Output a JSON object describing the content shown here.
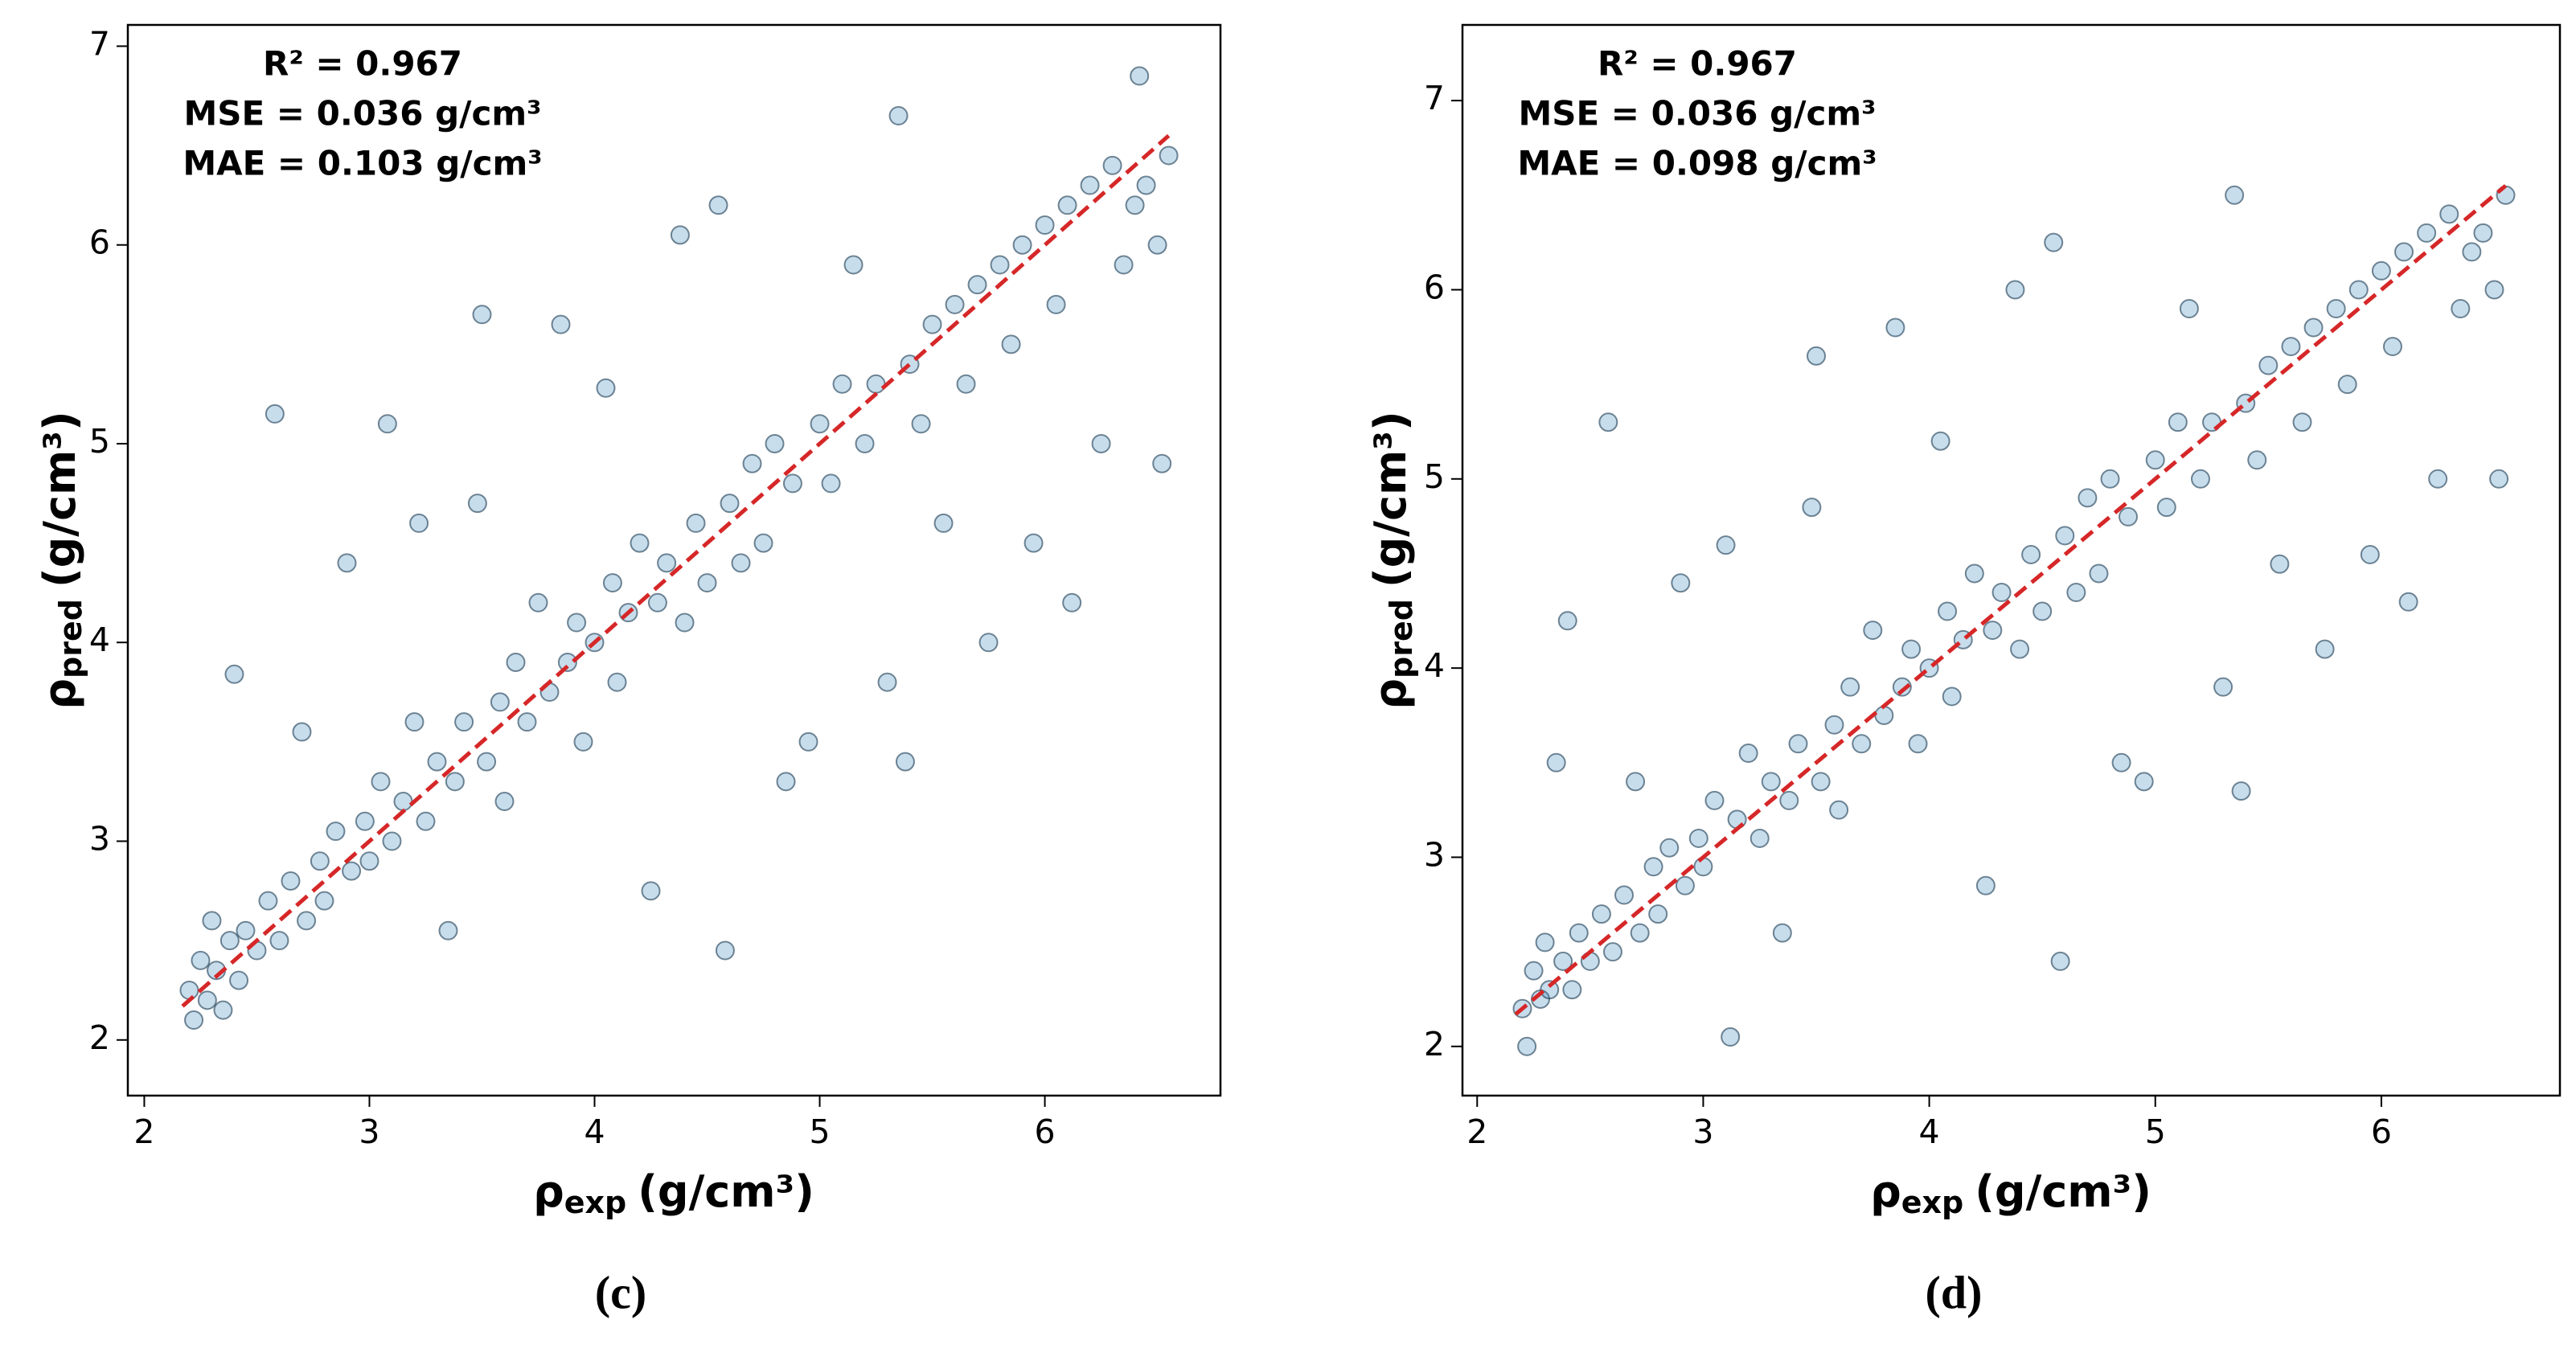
{
  "chart_data": [
    {
      "type": "scatter",
      "panel_label": "(c)",
      "x_label": {
        "symbol": "ρ",
        "subscript": "exp",
        "unit": "(g/cm³)"
      },
      "y_label": {
        "symbol": "ρ",
        "subscript": "pred",
        "unit": "(g/cm³)"
      },
      "annotations": [
        "R² = 0.967",
        "MSE = 0.036 g/cm³",
        "MAE = 0.103 g/cm³"
      ],
      "xlim": [
        1.927,
        6.78
      ],
      "ylim": [
        1.72,
        7.107
      ],
      "xticks": [
        2,
        3,
        4,
        5,
        6
      ],
      "yticks": [
        2,
        3,
        4,
        5,
        6,
        7
      ],
      "color": "#1f77b4",
      "reference_line": {
        "x": [
          2.17,
          6.55
        ],
        "y": [
          2.17,
          6.55
        ],
        "color": "#d62728",
        "style": "dashed"
      },
      "x": [
        2.2,
        2.22,
        2.25,
        2.28,
        2.3,
        2.32,
        2.35,
        2.38,
        2.4,
        2.42,
        2.45,
        2.5,
        2.55,
        2.58,
        2.6,
        2.65,
        2.7,
        2.72,
        2.78,
        2.8,
        2.85,
        2.9,
        2.92,
        2.98,
        3.0,
        3.05,
        3.08,
        3.1,
        3.15,
        3.2,
        3.22,
        3.25,
        3.3,
        3.35,
        3.38,
        3.42,
        3.48,
        3.5,
        3.52,
        3.58,
        3.6,
        3.65,
        3.7,
        3.75,
        3.8,
        3.85,
        3.88,
        3.92,
        3.95,
        4.0,
        4.05,
        4.08,
        4.1,
        4.15,
        4.2,
        4.25,
        4.28,
        4.32,
        4.38,
        4.4,
        4.45,
        4.5,
        4.55,
        4.58,
        4.6,
        4.65,
        4.7,
        4.75,
        4.8,
        4.85,
        4.88,
        4.95,
        5.0,
        5.05,
        5.1,
        5.15,
        5.2,
        5.25,
        5.3,
        5.35,
        5.38,
        5.4,
        5.45,
        5.5,
        5.55,
        5.6,
        5.65,
        5.7,
        5.75,
        5.8,
        5.85,
        5.9,
        5.95,
        6.0,
        6.05,
        6.1,
        6.12,
        6.2,
        6.25,
        6.3,
        6.35,
        6.4,
        6.42,
        6.45,
        6.5,
        6.52,
        6.55
      ],
      "y": [
        2.25,
        2.1,
        2.4,
        2.2,
        2.6,
        2.35,
        2.15,
        2.5,
        3.84,
        2.3,
        2.55,
        2.45,
        2.7,
        5.15,
        2.5,
        2.8,
        3.55,
        2.6,
        2.9,
        2.7,
        3.05,
        4.4,
        2.85,
        3.1,
        2.9,
        3.3,
        5.1,
        3.0,
        3.2,
        3.6,
        4.6,
        3.1,
        3.4,
        2.55,
        3.3,
        3.6,
        4.7,
        5.65,
        3.4,
        3.7,
        3.2,
        3.9,
        3.6,
        4.2,
        3.75,
        5.6,
        3.9,
        4.1,
        3.5,
        4.0,
        5.28,
        4.3,
        3.8,
        4.15,
        4.5,
        2.75,
        4.2,
        4.4,
        6.05,
        4.1,
        4.6,
        4.3,
        6.2,
        2.45,
        4.7,
        4.4,
        4.9,
        4.5,
        5.0,
        3.3,
        4.8,
        3.5,
        5.1,
        4.8,
        5.3,
        5.9,
        5.0,
        5.3,
        3.8,
        6.65,
        3.4,
        5.4,
        5.1,
        5.6,
        4.6,
        5.7,
        5.3,
        5.8,
        4.0,
        5.9,
        5.5,
        6.0,
        4.5,
        6.1,
        5.7,
        6.2,
        4.2,
        6.3,
        5.0,
        6.4,
        5.9,
        6.2,
        6.85,
        6.3,
        6.0,
        4.9,
        6.45
      ]
    },
    {
      "type": "scatter",
      "panel_label": "(d)",
      "x_label": {
        "symbol": "ρ",
        "subscript": "exp",
        "unit": "(g/cm³)"
      },
      "y_label": {
        "symbol": "ρ",
        "subscript": "pred",
        "unit": "(g/cm³)"
      },
      "annotations": [
        "R² = 0.967",
        "MSE = 0.036 g/cm³",
        "MAE = 0.098 g/cm³"
      ],
      "xlim": [
        1.935,
        6.79
      ],
      "ylim": [
        1.74,
        7.4
      ],
      "xticks": [
        2,
        3,
        4,
        5,
        6
      ],
      "yticks": [
        2,
        3,
        4,
        5,
        6,
        7
      ],
      "color": "#1f77b4",
      "reference_line": {
        "x": [
          2.17,
          6.55
        ],
        "y": [
          2.17,
          6.55
        ],
        "color": "#d62728",
        "style": "dashed"
      },
      "x": [
        2.2,
        2.22,
        2.25,
        2.28,
        2.3,
        2.32,
        2.35,
        2.38,
        2.4,
        2.42,
        2.45,
        2.5,
        2.55,
        2.58,
        2.6,
        2.65,
        2.7,
        2.72,
        2.78,
        2.8,
        2.85,
        2.9,
        2.92,
        2.98,
        3.0,
        3.05,
        3.1,
        3.12,
        3.15,
        3.2,
        3.25,
        3.3,
        3.35,
        3.38,
        3.42,
        3.48,
        3.5,
        3.52,
        3.58,
        3.6,
        3.65,
        3.7,
        3.75,
        3.8,
        3.85,
        3.88,
        3.92,
        3.95,
        4.0,
        4.05,
        4.08,
        4.1,
        4.15,
        4.2,
        4.25,
        4.28,
        4.32,
        4.38,
        4.4,
        4.45,
        4.5,
        4.55,
        4.58,
        4.6,
        4.65,
        4.7,
        4.75,
        4.8,
        4.85,
        4.88,
        4.95,
        5.0,
        5.05,
        5.1,
        5.15,
        5.2,
        5.25,
        5.3,
        5.35,
        5.38,
        5.4,
        5.45,
        5.5,
        5.55,
        5.6,
        5.65,
        5.7,
        5.75,
        5.8,
        5.85,
        5.9,
        5.95,
        6.0,
        6.05,
        6.1,
        6.12,
        6.2,
        6.25,
        6.3,
        6.35,
        6.4,
        6.45,
        6.5,
        6.52,
        6.55
      ],
      "y": [
        2.2,
        2.0,
        2.4,
        2.25,
        2.55,
        2.3,
        3.5,
        2.45,
        4.25,
        2.3,
        2.6,
        2.45,
        2.7,
        5.3,
        2.5,
        2.8,
        3.4,
        2.6,
        2.95,
        2.7,
        3.05,
        4.45,
        2.85,
        3.1,
        2.95,
        3.3,
        4.65,
        2.05,
        3.2,
        3.55,
        3.1,
        3.4,
        2.6,
        3.3,
        3.6,
        4.85,
        5.65,
        3.4,
        3.7,
        3.25,
        3.9,
        3.6,
        4.2,
        3.75,
        5.8,
        3.9,
        4.1,
        3.6,
        4.0,
        5.2,
        4.3,
        3.85,
        4.15,
        4.5,
        2.85,
        4.2,
        4.4,
        6.0,
        4.1,
        4.6,
        4.3,
        6.25,
        2.45,
        4.7,
        4.4,
        4.9,
        4.5,
        5.0,
        3.5,
        4.8,
        3.4,
        5.1,
        4.85,
        5.3,
        5.9,
        5.0,
        5.3,
        3.9,
        6.5,
        3.35,
        5.4,
        5.1,
        5.6,
        4.55,
        5.7,
        5.3,
        5.8,
        4.1,
        5.9,
        5.5,
        6.0,
        4.6,
        6.1,
        5.7,
        6.2,
        4.35,
        6.3,
        5.0,
        6.4,
        5.9,
        6.2,
        6.3,
        6.0,
        5.0,
        6.5
      ]
    }
  ]
}
